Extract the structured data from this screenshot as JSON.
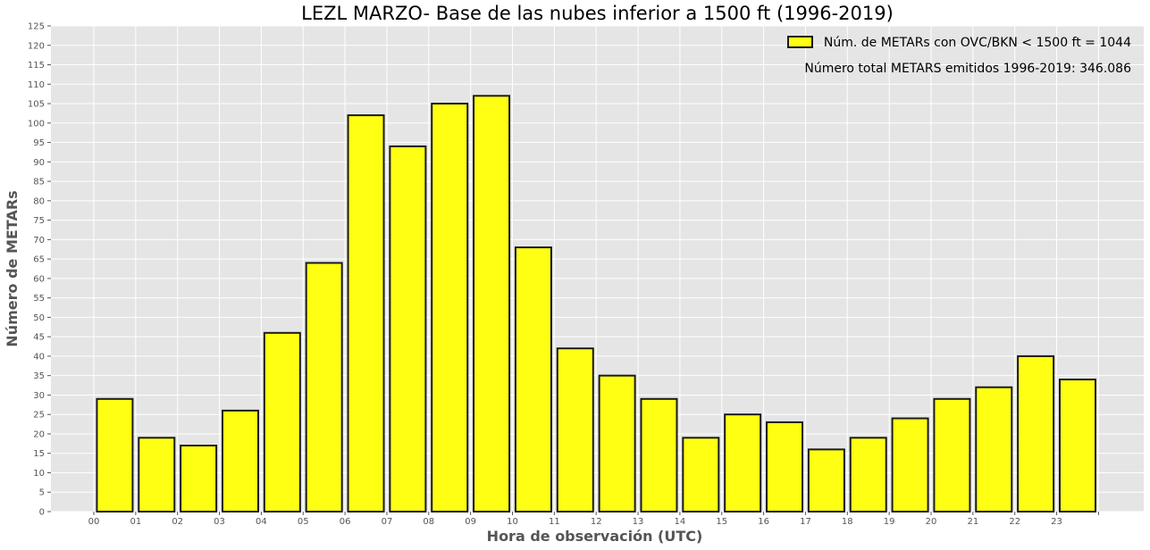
{
  "chart_data": {
    "type": "bar",
    "title": "LEZL MARZO- Base de las nubes inferior a 1500 ft (1996-2019)",
    "xlabel": "Hora de observación (UTC)",
    "ylabel": "Número de METARs",
    "categories": [
      "00",
      "01",
      "02",
      "03",
      "04",
      "05",
      "06",
      "07",
      "08",
      "09",
      "10",
      "11",
      "12",
      "13",
      "14",
      "15",
      "16",
      "17",
      "18",
      "19",
      "20",
      "21",
      "22",
      "23"
    ],
    "series": [
      {
        "name": "Núm. de METARs con OVC/BKN < 1500 ft = 1044",
        "values": [
          29,
          19,
          17,
          26,
          46,
          64,
          102,
          94,
          105,
          107,
          68,
          42,
          35,
          29,
          19,
          25,
          23,
          16,
          19,
          24,
          29,
          32,
          40,
          34
        ]
      }
    ],
    "ylim": [
      0,
      125
    ],
    "yticks": [
      0,
      5,
      10,
      15,
      20,
      25,
      30,
      35,
      40,
      45,
      50,
      55,
      60,
      65,
      70,
      75,
      80,
      85,
      90,
      95,
      100,
      105,
      110,
      115,
      120,
      125
    ],
    "grid": true,
    "legend_position": "top-right",
    "annotation": "Número total METARS emitidos 1996-2019: 346.086",
    "colors": {
      "bar_fill": "#ffff14",
      "bar_edge": "#1a1a1a",
      "plot_background": "#e5e5e5",
      "grid": "#ffffff"
    }
  }
}
